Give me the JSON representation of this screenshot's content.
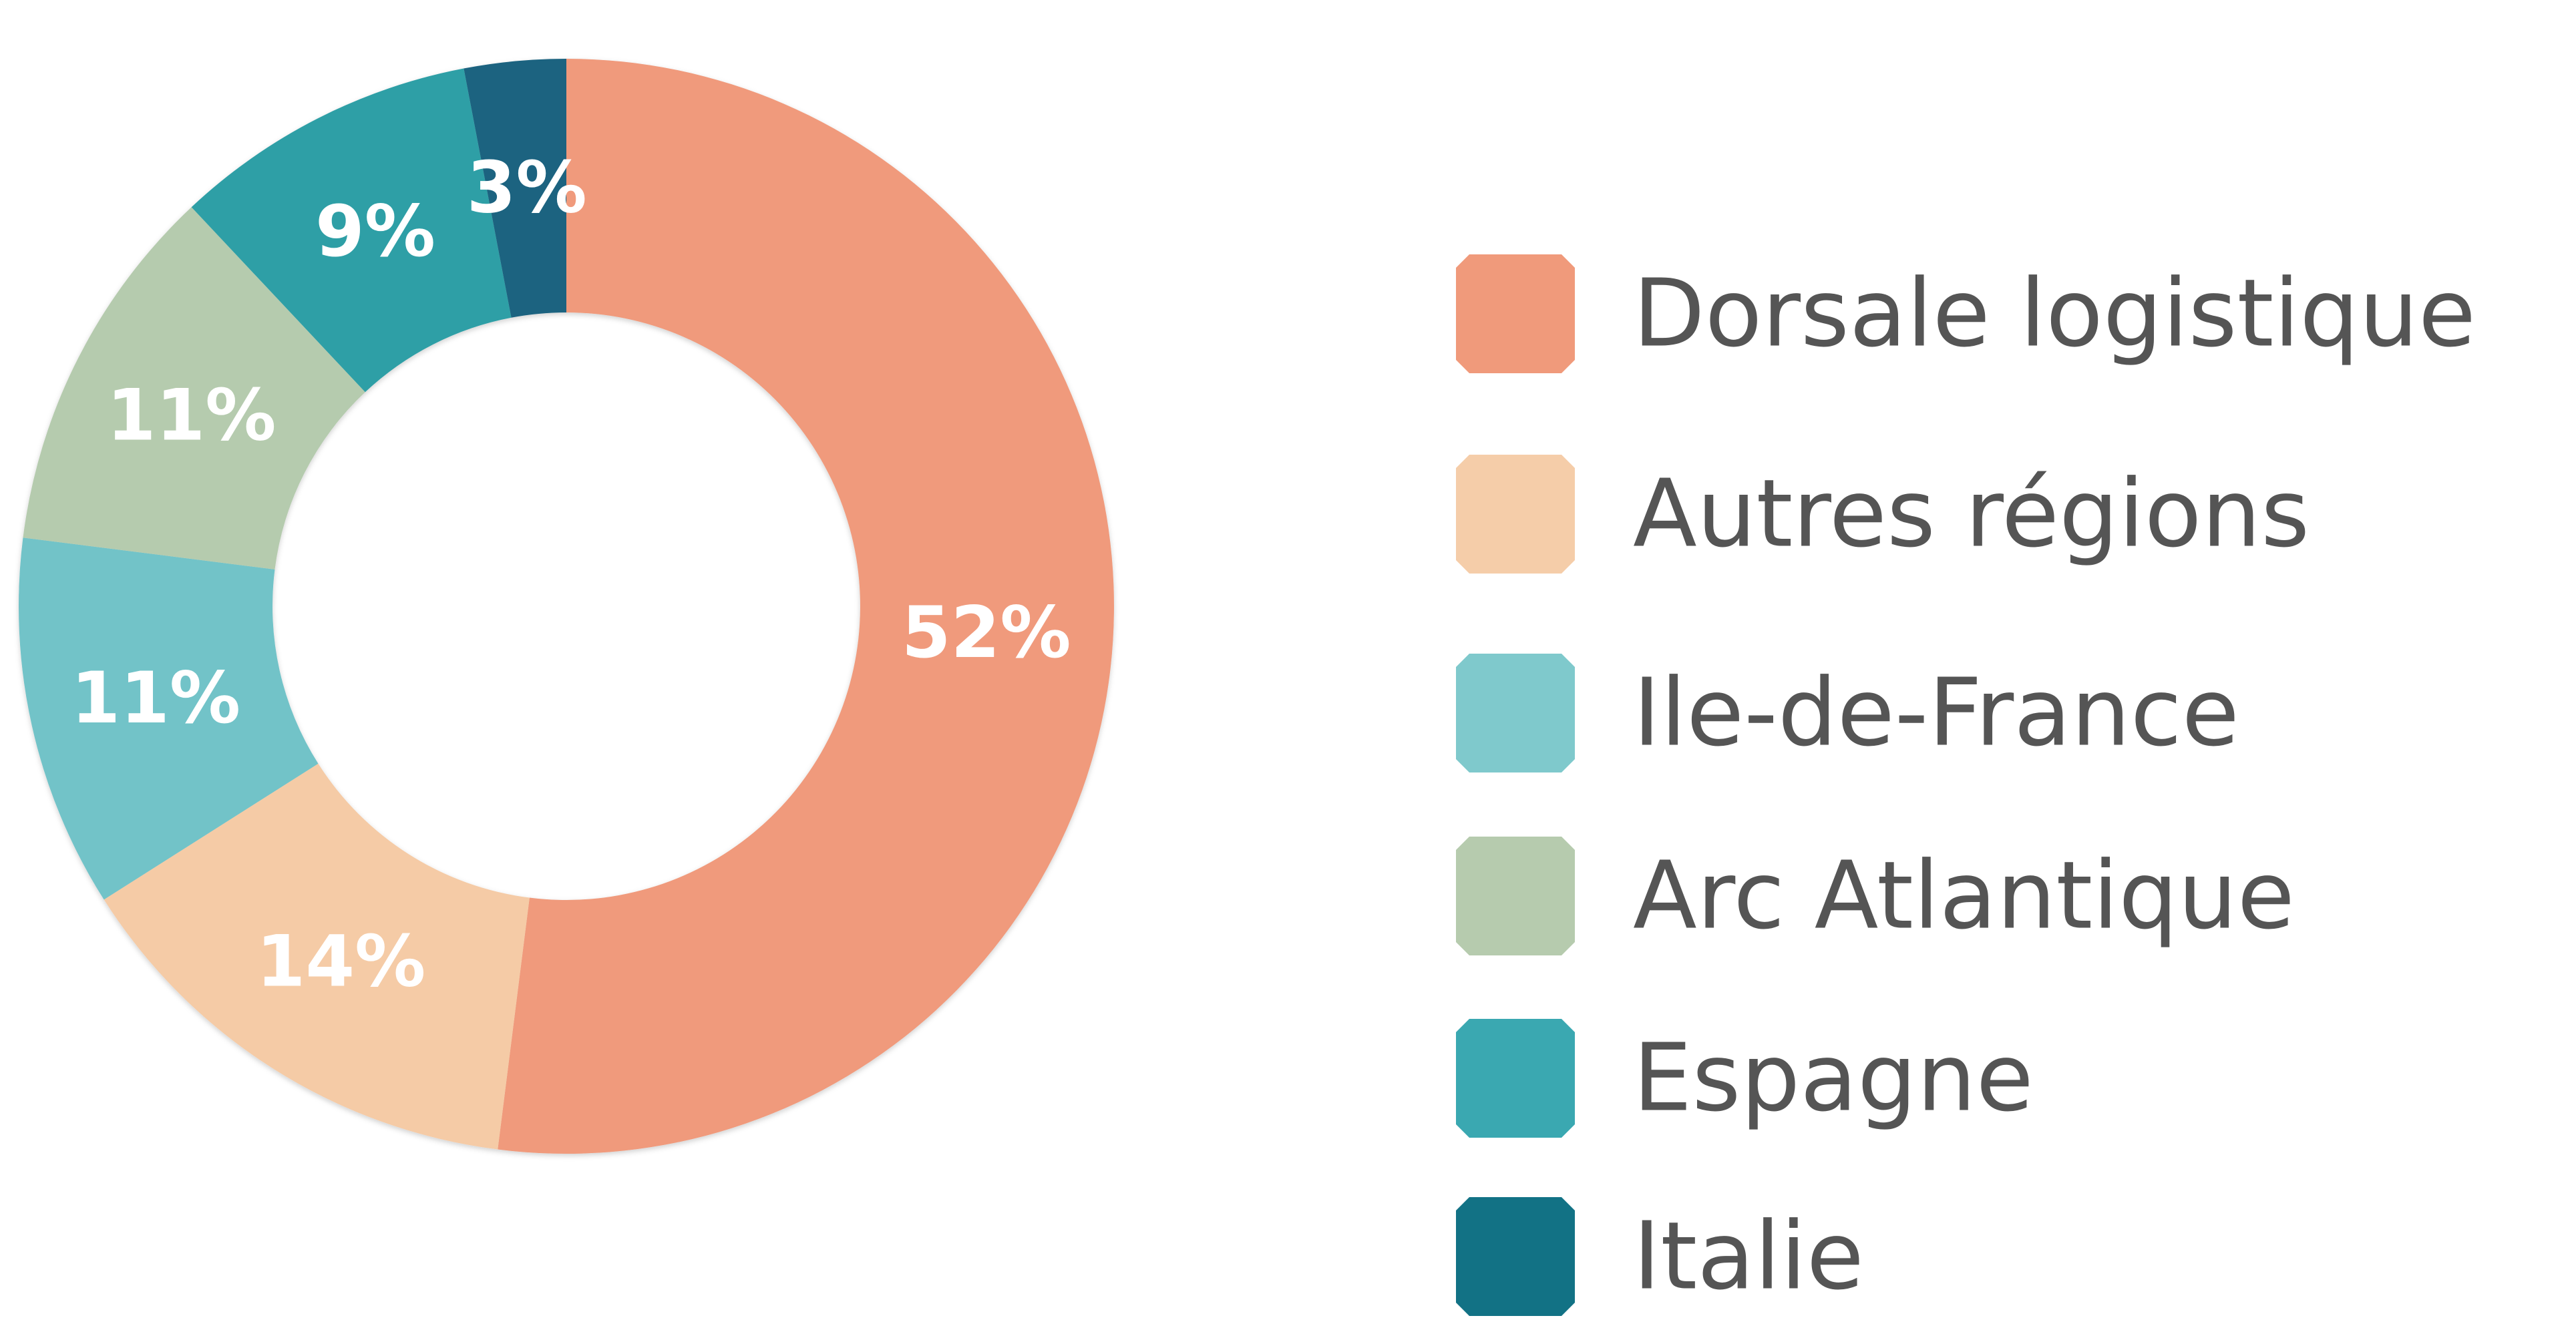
{
  "chart_data": {
    "type": "pie",
    "donut": true,
    "categories": [
      "Dorsale logistique",
      "Autres régions",
      "Ile-de-France",
      "Arc Atlantique",
      "Espagne",
      "Italie"
    ],
    "values": [
      52,
      14,
      11,
      11,
      9,
      3
    ],
    "value_labels": [
      "52%",
      "14%",
      "11%",
      "11%",
      "9%",
      "3%"
    ],
    "colors": [
      "#f09a7b",
      "#f5cba6",
      "#72c3c8",
      "#b5cbae",
      "#2f9fa6",
      "#1a6480"
    ],
    "legend_colors": [
      "#f09a7b",
      "#f5cda9",
      "#7fc9cc",
      "#b6cbae",
      "#3aa8b1",
      "#127285"
    ],
    "legend_position": "right"
  }
}
